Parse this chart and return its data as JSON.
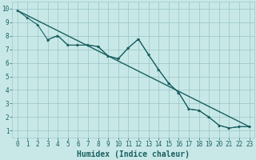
{
  "bg_color": "#c8e8e8",
  "grid_color": "#a0c8c8",
  "line_color": "#1a6060",
  "marker_color": "#1a6060",
  "xlabel": "Humidex (Indice chaleur)",
  "xlabel_fontsize": 7,
  "xlim": [
    -0.5,
    23.5
  ],
  "ylim": [
    0.5,
    10.5
  ],
  "xticks": [
    0,
    1,
    2,
    3,
    4,
    5,
    6,
    7,
    8,
    9,
    10,
    11,
    12,
    13,
    14,
    15,
    16,
    17,
    18,
    19,
    20,
    21,
    22,
    23
  ],
  "yticks": [
    1,
    2,
    3,
    4,
    5,
    6,
    7,
    8,
    9,
    10
  ],
  "line1_x": [
    0,
    1,
    2,
    3,
    4,
    5,
    6,
    7,
    8,
    9,
    10,
    11,
    12,
    13,
    14,
    15,
    16,
    17,
    18,
    19,
    20,
    21,
    22,
    23
  ],
  "line1_y": [
    9.85,
    9.3,
    8.8,
    7.7,
    8.0,
    7.3,
    7.3,
    7.3,
    7.2,
    6.5,
    6.3,
    7.1,
    7.75,
    6.6,
    5.5,
    4.5,
    3.8,
    2.6,
    2.5,
    2.0,
    1.4,
    1.2,
    1.3,
    1.3
  ],
  "line2_x": [
    0,
    23
  ],
  "line2_y": [
    9.85,
    1.3
  ],
  "line3_x": [
    3,
    4,
    5,
    6,
    7,
    8,
    9,
    10,
    11,
    12,
    13,
    14,
    15,
    16,
    17,
    18,
    19,
    20,
    21,
    22,
    23
  ],
  "line3_y": [
    7.7,
    8.0,
    7.3,
    7.3,
    7.3,
    7.2,
    6.5,
    6.3,
    7.1,
    7.75,
    6.6,
    5.5,
    4.5,
    3.8,
    2.6,
    2.5,
    2.0,
    1.4,
    1.2,
    1.3,
    1.3
  ]
}
